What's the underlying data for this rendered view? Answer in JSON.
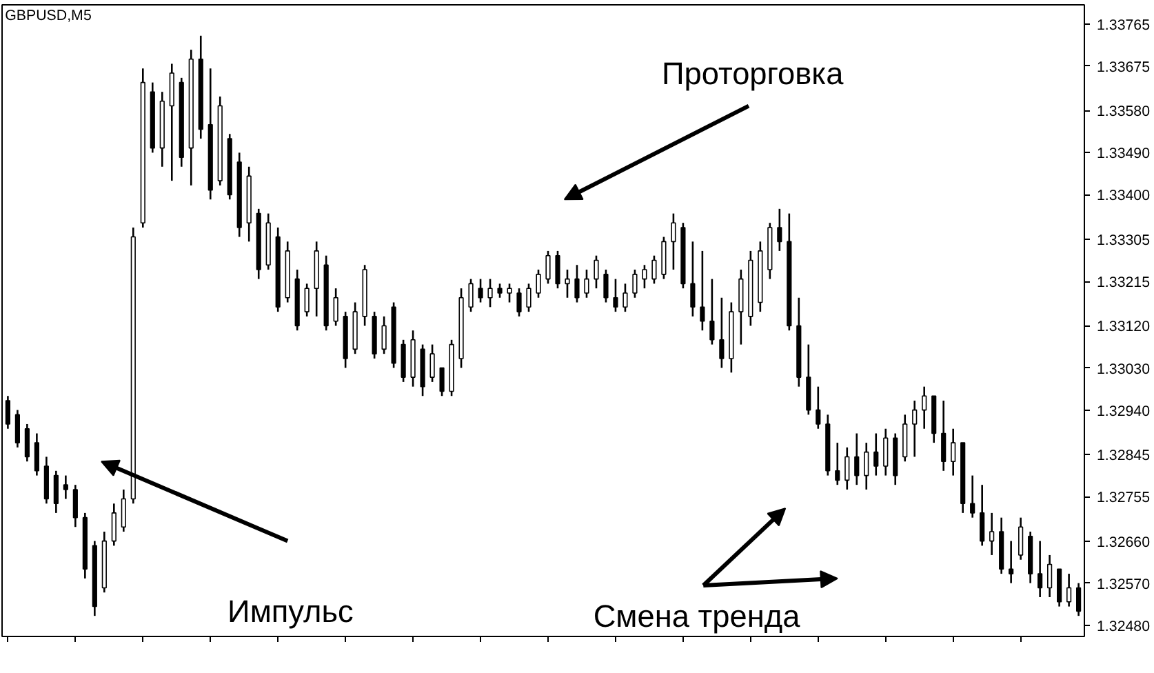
{
  "chart_data": {
    "type": "candlestick",
    "title": "GBPUSD,M5",
    "color": "#000000",
    "tick_labels": "y",
    "grid": false,
    "annotations": [
      "Проторговка",
      "Импульс",
      "Смена тренда"
    ],
    "ylim": [
      1.32456,
      1.33806
    ],
    "yticks": [
      {
        "value": 1.3248,
        "label": "1.32480"
      },
      {
        "value": 1.3257,
        "label": "1.32570"
      },
      {
        "value": 1.3266,
        "label": "1.32660"
      },
      {
        "value": 1.32755,
        "label": "1.32755"
      },
      {
        "value": 1.32845,
        "label": "1.32845"
      },
      {
        "value": 1.3294,
        "label": "1.32940"
      },
      {
        "value": 1.3303,
        "label": "1.33030"
      },
      {
        "value": 1.3312,
        "label": "1.33120"
      },
      {
        "value": 1.33215,
        "label": "1.33215"
      },
      {
        "value": 1.33305,
        "label": "1.33305"
      },
      {
        "value": 1.334,
        "label": "1.33400"
      },
      {
        "value": 1.3349,
        "label": "1.33490"
      },
      {
        "value": 1.3358,
        "label": "1.33580"
      },
      {
        "value": 1.33675,
        "label": "1.33675"
      },
      {
        "value": 1.33765,
        "label": "1.33765"
      }
    ],
    "categories": [
      null,
      null,
      null,
      null,
      null,
      null,
      null,
      null,
      null,
      null,
      null,
      null,
      null,
      null,
      null,
      null,
      null,
      null,
      null,
      null,
      null,
      null,
      null,
      null,
      null,
      null,
      null,
      null,
      null,
      null,
      null,
      null,
      null,
      null,
      null,
      null,
      null,
      null,
      null,
      null,
      null,
      null,
      null,
      null,
      null,
      null,
      null,
      null,
      null,
      null,
      null,
      null,
      null,
      null,
      null,
      null,
      null,
      null,
      null,
      null,
      null,
      null,
      null,
      null,
      null,
      null,
      null,
      null,
      null,
      null,
      null,
      null,
      null,
      null,
      null,
      null,
      null,
      null,
      null,
      null,
      null,
      null,
      null,
      null,
      null,
      null,
      null,
      null,
      null,
      null,
      null,
      null,
      null,
      null,
      null,
      null,
      null,
      null,
      null,
      null,
      null,
      null,
      null,
      null,
      null,
      null,
      null,
      null,
      null,
      null,
      null,
      null
    ],
    "ohlc": [
      [
        1.3296,
        1.3297,
        1.329,
        1.3291
      ],
      [
        1.3293,
        1.3294,
        1.3286,
        1.3287
      ],
      [
        1.329,
        1.3291,
        1.3283,
        1.3284
      ],
      [
        1.3287,
        1.3289,
        1.328,
        1.3281
      ],
      [
        1.3282,
        1.3284,
        1.3274,
        1.3275
      ],
      [
        1.328,
        1.3281,
        1.3272,
        1.3274
      ],
      [
        1.3278,
        1.328,
        1.3275,
        1.3277
      ],
      [
        1.3277,
        1.3278,
        1.3269,
        1.3271
      ],
      [
        1.3271,
        1.3272,
        1.3258,
        1.326
      ],
      [
        1.3265,
        1.3266,
        1.325,
        1.3252
      ],
      [
        1.3256,
        1.3268,
        1.3255,
        1.3266
      ],
      [
        1.3266,
        1.3274,
        1.3265,
        1.3272
      ],
      [
        1.3269,
        1.3277,
        1.3268,
        1.3275
      ],
      [
        1.3275,
        1.3333,
        1.3274,
        1.3331
      ],
      [
        1.3334,
        1.3367,
        1.3333,
        1.3364
      ],
      [
        1.3362,
        1.3364,
        1.3349,
        1.335
      ],
      [
        1.335,
        1.3362,
        1.3346,
        1.336
      ],
      [
        1.3359,
        1.3368,
        1.3343,
        1.3366
      ],
      [
        1.3364,
        1.3365,
        1.3346,
        1.3348
      ],
      [
        1.335,
        1.3371,
        1.3342,
        1.3369
      ],
      [
        1.3369,
        1.3374,
        1.3352,
        1.3354
      ],
      [
        1.3355,
        1.3367,
        1.3339,
        1.3341
      ],
      [
        1.3343,
        1.3361,
        1.3342,
        1.3359
      ],
      [
        1.3352,
        1.3353,
        1.3339,
        1.334
      ],
      [
        1.3347,
        1.3349,
        1.3331,
        1.3333
      ],
      [
        1.3334,
        1.3346,
        1.333,
        1.3344
      ],
      [
        1.3336,
        1.3337,
        1.3322,
        1.3324
      ],
      [
        1.3325,
        1.3336,
        1.3324,
        1.3334
      ],
      [
        1.3331,
        1.3333,
        1.3315,
        1.3316
      ],
      [
        1.3318,
        1.333,
        1.3317,
        1.3328
      ],
      [
        1.3322,
        1.3324,
        1.3311,
        1.3312
      ],
      [
        1.3315,
        1.3321,
        1.3314,
        1.332
      ],
      [
        1.332,
        1.333,
        1.3314,
        1.3328
      ],
      [
        1.3325,
        1.3327,
        1.3311,
        1.3312
      ],
      [
        1.3313,
        1.332,
        1.3312,
        1.3318
      ],
      [
        1.3314,
        1.3315,
        1.3303,
        1.3305
      ],
      [
        1.3307,
        1.3317,
        1.3306,
        1.3315
      ],
      [
        1.3314,
        1.3325,
        1.3312,
        1.3324
      ],
      [
        1.3314,
        1.3315,
        1.3305,
        1.3306
      ],
      [
        1.3307,
        1.3314,
        1.3306,
        1.3312
      ],
      [
        1.3316,
        1.3317,
        1.3303,
        1.3304
      ],
      [
        1.3308,
        1.3309,
        1.33,
        1.3301
      ],
      [
        1.3301,
        1.3311,
        1.3299,
        1.3309
      ],
      [
        1.3307,
        1.3308,
        1.3297,
        1.3299
      ],
      [
        1.3301,
        1.3308,
        1.33,
        1.3306
      ],
      [
        1.3303,
        1.3303,
        1.3297,
        1.3298
      ],
      [
        1.3298,
        1.3309,
        1.3297,
        1.3308
      ],
      [
        1.3305,
        1.332,
        1.3303,
        1.3318
      ],
      [
        1.3316,
        1.3322,
        1.3315,
        1.3321
      ],
      [
        1.332,
        1.3322,
        1.3317,
        1.3318
      ],
      [
        1.3318,
        1.3322,
        1.3316,
        1.332
      ],
      [
        1.332,
        1.3321,
        1.3318,
        1.3319
      ],
      [
        1.3319,
        1.3321,
        1.3317,
        1.332
      ],
      [
        1.3319,
        1.332,
        1.3314,
        1.3315
      ],
      [
        1.3316,
        1.3321,
        1.3315,
        1.332
      ],
      [
        1.3319,
        1.3324,
        1.3318,
        1.3323
      ],
      [
        1.3322,
        1.3328,
        1.3321,
        1.3327
      ],
      [
        1.3327,
        1.3328,
        1.332,
        1.3321
      ],
      [
        1.3321,
        1.3324,
        1.3318,
        1.3322
      ],
      [
        1.3322,
        1.3325,
        1.3317,
        1.3318
      ],
      [
        1.3319,
        1.3324,
        1.3318,
        1.3322
      ],
      [
        1.3322,
        1.3327,
        1.332,
        1.3326
      ],
      [
        1.3323,
        1.3324,
        1.3317,
        1.3318
      ],
      [
        1.3318,
        1.3322,
        1.3315,
        1.3316
      ],
      [
        1.3316,
        1.3321,
        1.3315,
        1.3319
      ],
      [
        1.3319,
        1.3324,
        1.3318,
        1.3323
      ],
      [
        1.3322,
        1.3325,
        1.332,
        1.3324
      ],
      [
        1.3322,
        1.3327,
        1.3321,
        1.3326
      ],
      [
        1.3323,
        1.3331,
        1.3322,
        1.333
      ],
      [
        1.333,
        1.3336,
        1.3324,
        1.3334
      ],
      [
        1.3333,
        1.3334,
        1.332,
        1.3321
      ],
      [
        1.3321,
        1.333,
        1.3314,
        1.3316
      ],
      [
        1.3316,
        1.3328,
        1.3311,
        1.3313
      ],
      [
        1.3313,
        1.3322,
        1.3308,
        1.3309
      ],
      [
        1.3309,
        1.3318,
        1.3303,
        1.3305
      ],
      [
        1.3305,
        1.3317,
        1.3302,
        1.3315
      ],
      [
        1.3315,
        1.3324,
        1.3308,
        1.3322
      ],
      [
        1.3314,
        1.3328,
        1.3312,
        1.3326
      ],
      [
        1.3317,
        1.333,
        1.3315,
        1.3328
      ],
      [
        1.3324,
        1.3334,
        1.3322,
        1.3333
      ],
      [
        1.3333,
        1.3337,
        1.3328,
        1.333
      ],
      [
        1.333,
        1.3336,
        1.3311,
        1.3312
      ],
      [
        1.3312,
        1.3318,
        1.3299,
        1.3301
      ],
      [
        1.3301,
        1.3308,
        1.3293,
        1.3294
      ],
      [
        1.3294,
        1.3299,
        1.329,
        1.3291
      ],
      [
        1.3291,
        1.3293,
        1.328,
        1.3281
      ],
      [
        1.3281,
        1.3287,
        1.3278,
        1.3279
      ],
      [
        1.3279,
        1.3286,
        1.3277,
        1.3284
      ],
      [
        1.3284,
        1.3289,
        1.3278,
        1.328
      ],
      [
        1.328,
        1.3287,
        1.3277,
        1.3285
      ],
      [
        1.3285,
        1.3289,
        1.328,
        1.3282
      ],
      [
        1.3282,
        1.329,
        1.328,
        1.3288
      ],
      [
        1.3288,
        1.3289,
        1.3278,
        1.328
      ],
      [
        1.3284,
        1.3293,
        1.3283,
        1.3291
      ],
      [
        1.3291,
        1.3296,
        1.3284,
        1.3294
      ],
      [
        1.3294,
        1.3299,
        1.329,
        1.3297
      ],
      [
        1.3297,
        1.3297,
        1.3287,
        1.3289
      ],
      [
        1.3289,
        1.3296,
        1.3281,
        1.3283
      ],
      [
        1.3283,
        1.329,
        1.328,
        1.3287
      ],
      [
        1.3287,
        1.3287,
        1.3272,
        1.3274
      ],
      [
        1.3274,
        1.328,
        1.3271,
        1.3272
      ],
      [
        1.3272,
        1.3278,
        1.3265,
        1.3266
      ],
      [
        1.3266,
        1.3272,
        1.3263,
        1.3268
      ],
      [
        1.3268,
        1.3271,
        1.3259,
        1.326
      ],
      [
        1.326,
        1.3266,
        1.3257,
        1.3259
      ],
      [
        1.3263,
        1.3271,
        1.3262,
        1.3269
      ],
      [
        1.3267,
        1.3268,
        1.3257,
        1.3259
      ],
      [
        1.3259,
        1.3266,
        1.3254,
        1.3256
      ],
      [
        1.3256,
        1.3263,
        1.3254,
        1.3261
      ],
      [
        1.326,
        1.326,
        1.3252,
        1.3253
      ],
      [
        1.3253,
        1.3259,
        1.3252,
        1.3256
      ],
      [
        1.3256,
        1.3257,
        1.325,
        1.3251
      ]
    ]
  }
}
